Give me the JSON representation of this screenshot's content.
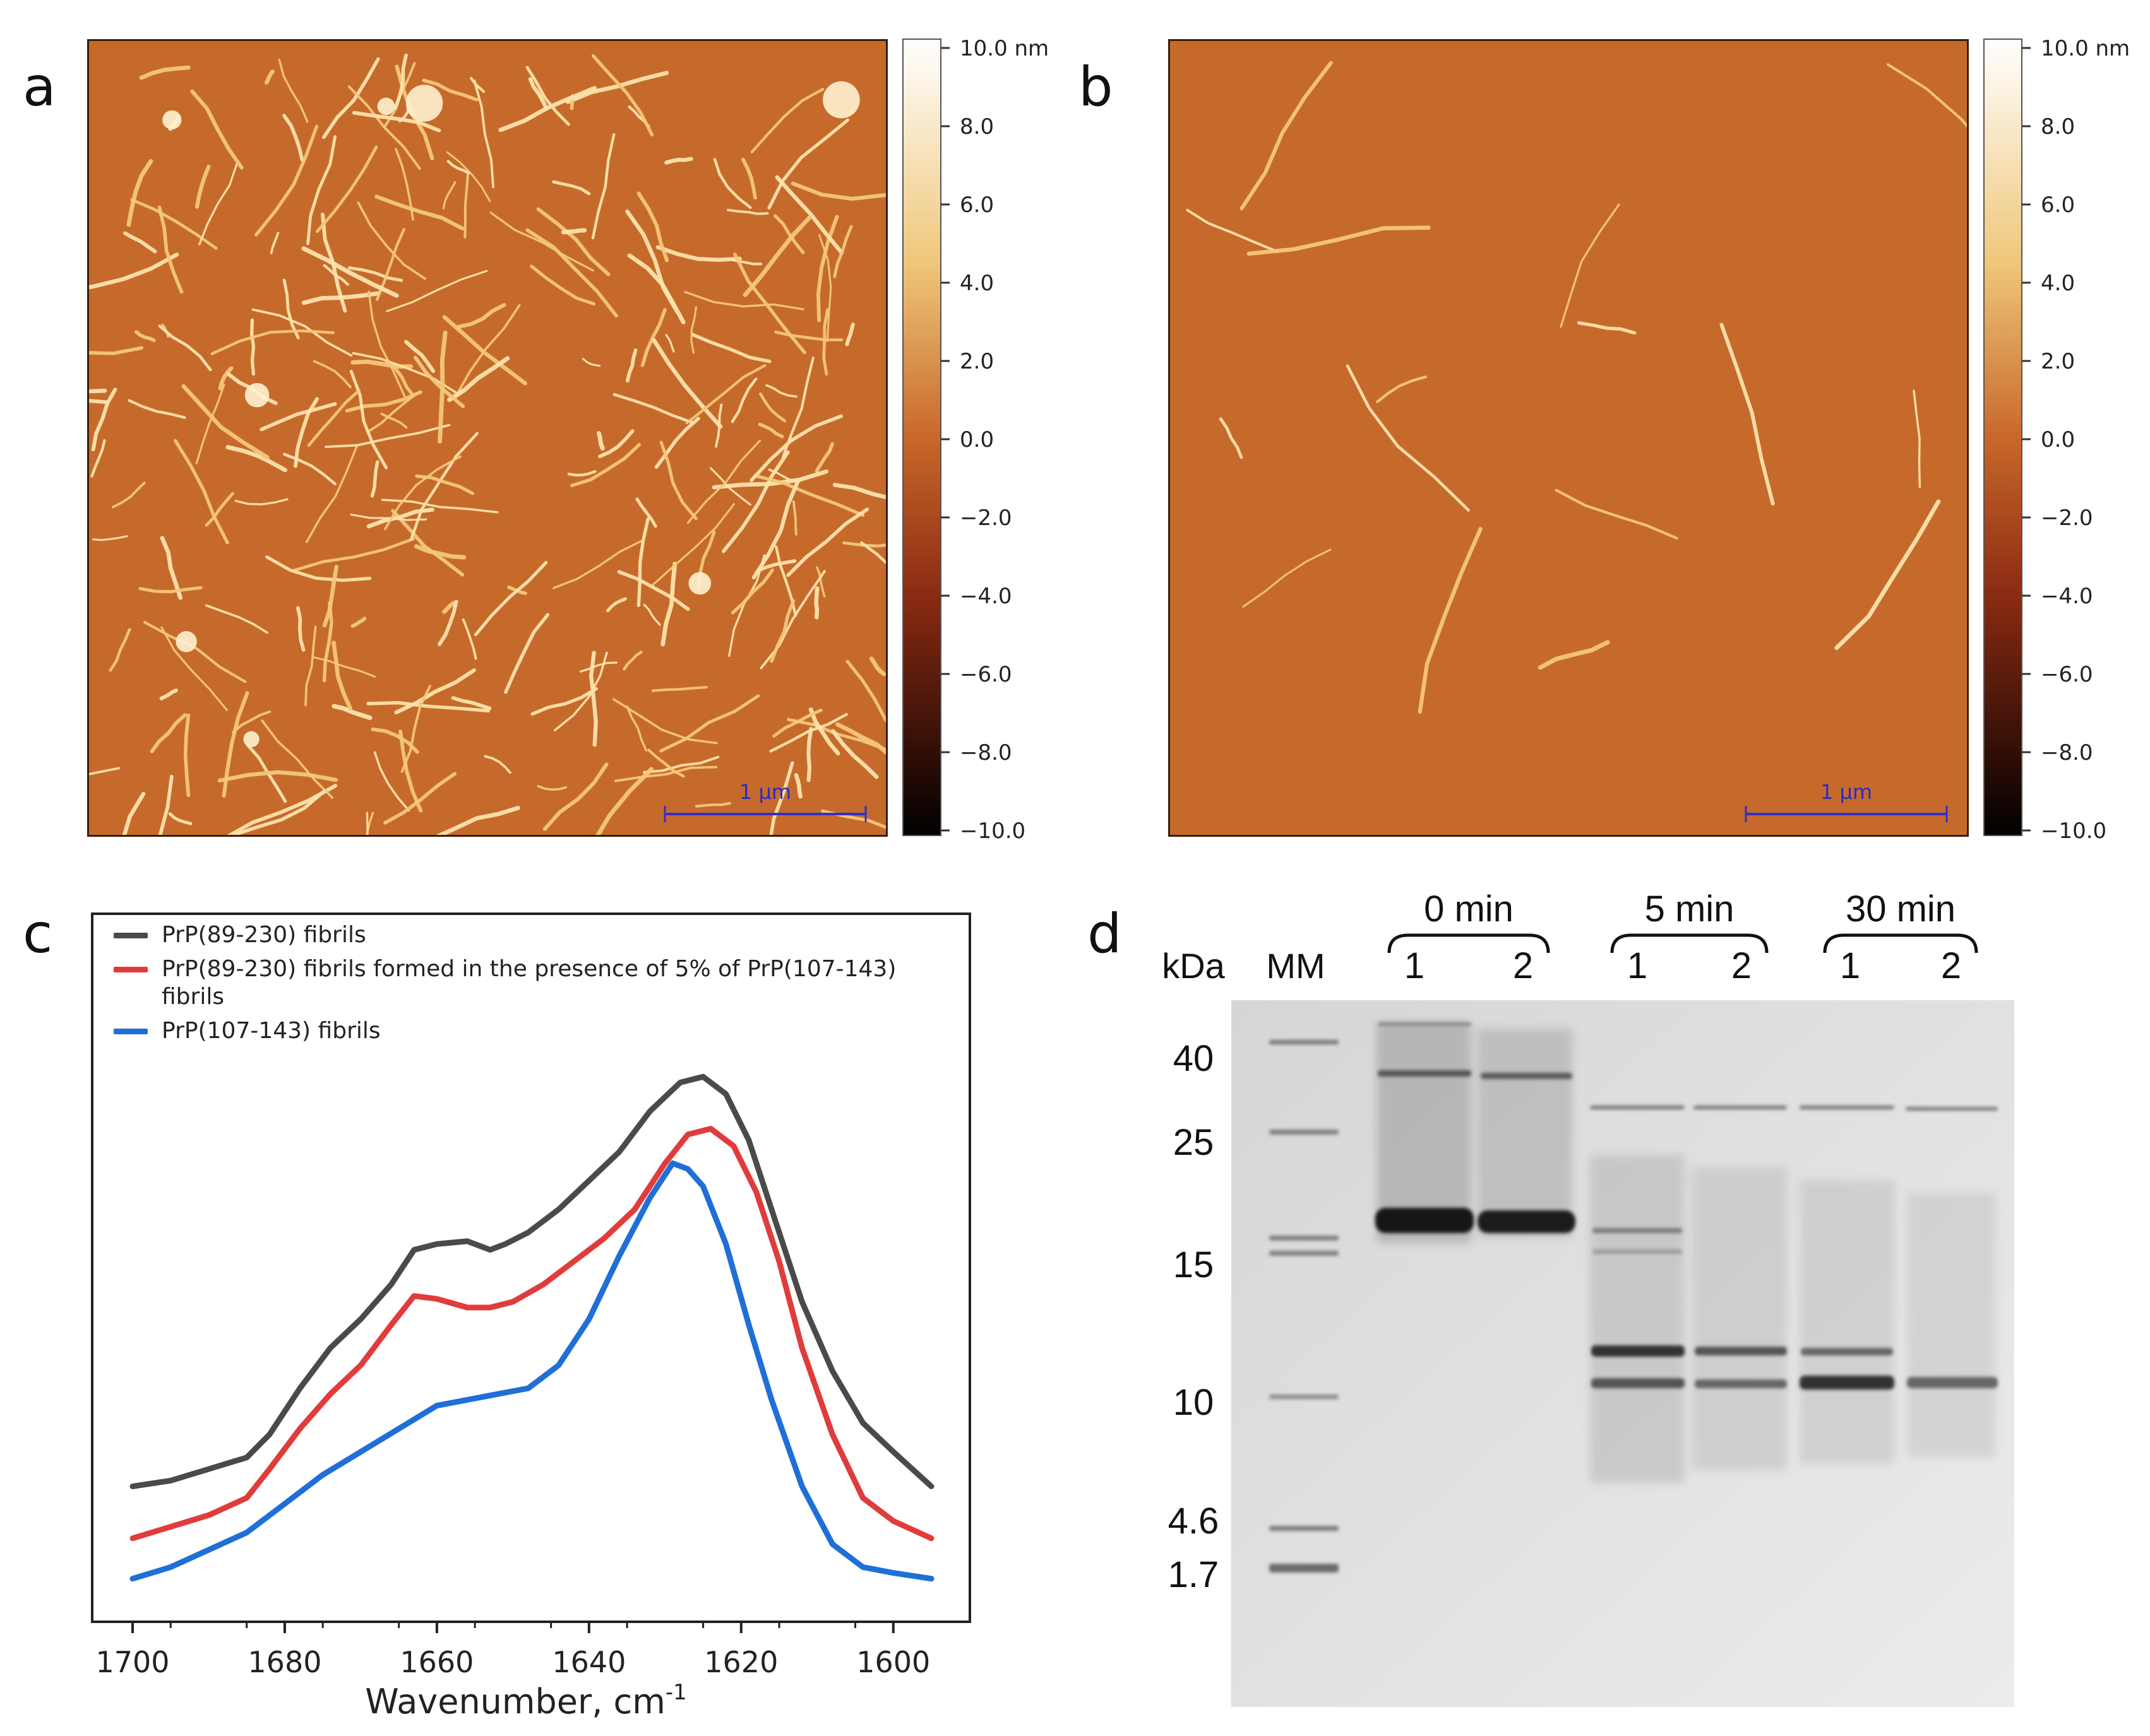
{
  "panels": {
    "a": {
      "label": "a",
      "scalebar": "1 µm"
    },
    "b": {
      "label": "b",
      "scalebar": "1 µm"
    },
    "c": {
      "label": "c"
    },
    "d": {
      "label": "d"
    }
  },
  "colorbar": {
    "ticks": [
      "10.0 nm",
      "8.0",
      "6.0",
      "4.0",
      "2.0",
      "0.0",
      "−2.0",
      "−4.0",
      "−6.0",
      "−8.0",
      "−10.0"
    ],
    "colors": {
      "high": "#ffffff",
      "mid_high": "#e8b45a",
      "mid": "#c8682a",
      "mid_low": "#8a2a12",
      "low": "#000000"
    }
  },
  "chart_data": {
    "type": "line",
    "xlabel": "Wavenumber, cm",
    "xlabel_sup": "-1",
    "xlim": [
      1700,
      1595
    ],
    "xticks": [
      1700,
      1680,
      1660,
      1640,
      1620,
      1600
    ],
    "ylim": [
      0,
      1.05
    ],
    "grid": false,
    "legend_position": "top-left",
    "series": [
      {
        "name": "PrP(89-230) fibrils",
        "color": "#4a4a4a",
        "x": [
          1700,
          1695,
          1690,
          1685,
          1682,
          1678,
          1674,
          1670,
          1666,
          1663,
          1660,
          1656,
          1653,
          1651,
          1648,
          1644,
          1640,
          1636,
          1632,
          1628,
          1625,
          1622,
          1619,
          1616,
          1612,
          1608,
          1604,
          1600,
          1595
        ],
        "y": [
          0.18,
          0.19,
          0.21,
          0.23,
          0.27,
          0.35,
          0.42,
          0.47,
          0.53,
          0.59,
          0.6,
          0.605,
          0.59,
          0.6,
          0.62,
          0.66,
          0.71,
          0.76,
          0.83,
          0.88,
          0.89,
          0.86,
          0.78,
          0.66,
          0.5,
          0.38,
          0.29,
          0.24,
          0.18
        ]
      },
      {
        "name": "PrP(89-230) fibrils formed in the presence of 5% of PrP(107-143) fibrils",
        "color": "#e03c3c",
        "x": [
          1700,
          1695,
          1690,
          1685,
          1682,
          1678,
          1674,
          1670,
          1666,
          1663,
          1660,
          1656,
          1653,
          1650,
          1646,
          1642,
          1638,
          1634,
          1630,
          1627,
          1624,
          1621,
          1618,
          1615,
          1612,
          1608,
          1604,
          1600,
          1595
        ],
        "y": [
          0.09,
          0.11,
          0.13,
          0.16,
          0.21,
          0.28,
          0.34,
          0.39,
          0.46,
          0.51,
          0.505,
          0.49,
          0.49,
          0.5,
          0.53,
          0.57,
          0.61,
          0.66,
          0.74,
          0.79,
          0.8,
          0.77,
          0.69,
          0.57,
          0.42,
          0.27,
          0.16,
          0.12,
          0.09
        ]
      },
      {
        "name": "PrP(107-143) fibrils",
        "color": "#1f6fd6",
        "x": [
          1700,
          1695,
          1690,
          1685,
          1680,
          1675,
          1670,
          1665,
          1660,
          1656,
          1652,
          1648,
          1644,
          1640,
          1636,
          1632,
          1629,
          1627,
          1625,
          1622,
          1619,
          1616,
          1612,
          1608,
          1604,
          1600,
          1595
        ],
        "y": [
          0.02,
          0.04,
          0.07,
          0.1,
          0.15,
          0.2,
          0.24,
          0.28,
          0.32,
          0.33,
          0.34,
          0.35,
          0.39,
          0.47,
          0.58,
          0.68,
          0.74,
          0.73,
          0.7,
          0.6,
          0.46,
          0.33,
          0.18,
          0.08,
          0.04,
          0.03,
          0.02
        ]
      }
    ]
  },
  "gel": {
    "kda_label": "kDa",
    "mm_label": "MM",
    "markers": [
      "40",
      "25",
      "15",
      "10",
      "4.6",
      "1.7"
    ],
    "groups": [
      {
        "time": "0 min",
        "lanes": [
          "1",
          "2"
        ]
      },
      {
        "time": "5 min",
        "lanes": [
          "1",
          "2"
        ]
      },
      {
        "time": "30 min",
        "lanes": [
          "1",
          "2"
        ]
      }
    ]
  }
}
